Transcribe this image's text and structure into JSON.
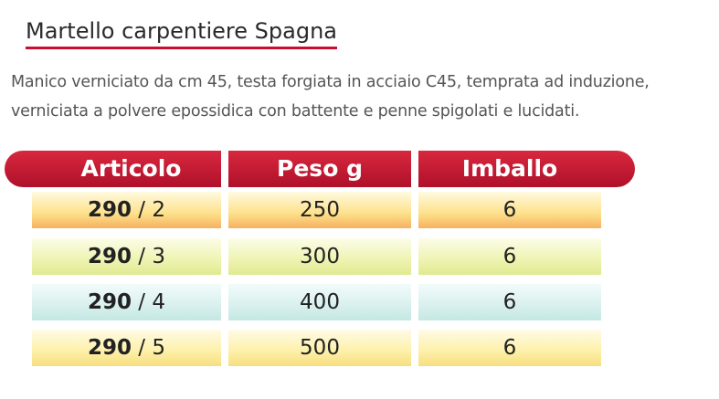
{
  "header": {
    "title": "Martello carpentiere Spagna",
    "description": [
      "Manico verniciato da cm 45, testa forgiata in acciaio C45, temprata ad induzione,",
      "verniciata a polvere epossidica con battente e penne spigolati e lucidati."
    ]
  },
  "table": {
    "columns": [
      "Articolo",
      "Peso g",
      "Imballo"
    ],
    "rows": [
      {
        "article": [
          "290",
          "/ 2"
        ],
        "weight": 250,
        "pack": 6
      },
      {
        "article": [
          "290",
          "/ 3"
        ],
        "weight": 300,
        "pack": 6
      },
      {
        "article": [
          "290",
          "/ 4"
        ],
        "weight": 400,
        "pack": 6
      },
      {
        "article": [
          "290",
          "/ 5"
        ],
        "weight": 500,
        "pack": 6
      }
    ]
  }
}
